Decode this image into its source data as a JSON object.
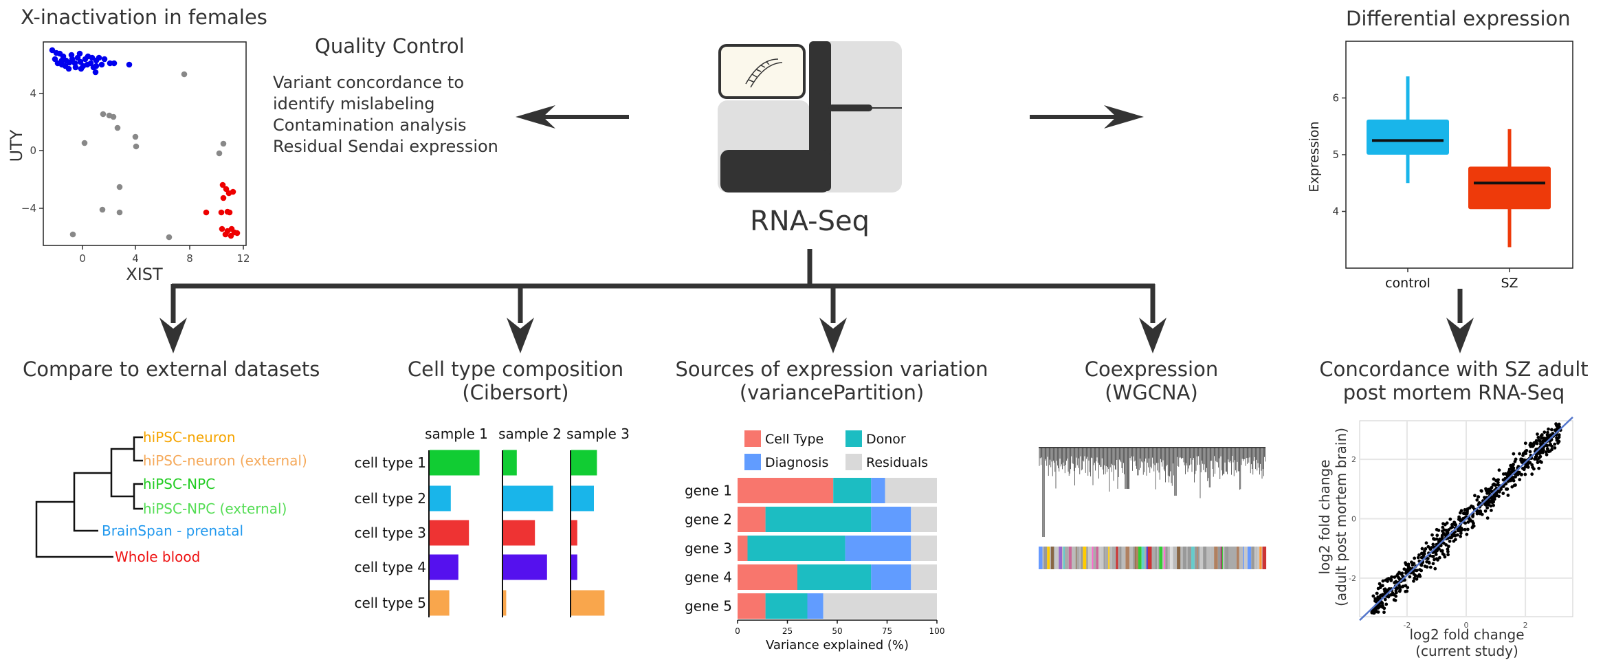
{
  "xinact": {
    "title": "X-inactivation in females",
    "xlabel": "XIST",
    "ylabel": "UTY",
    "xticks": [
      "0",
      "4",
      "8",
      "12"
    ],
    "yticks": [
      "4",
      "0",
      "−4"
    ],
    "colors": {
      "male": "#0000ee",
      "unknown": "#888888",
      "female": "#ee0000"
    }
  },
  "qc": {
    "title": "Quality Control",
    "lines": [
      "Variant concordance to",
      "identify mislabeling",
      "Contamination analysis",
      "Residual Sendai expression"
    ]
  },
  "rnaseq": {
    "label": "RNA-Seq"
  },
  "diffexp": {
    "title": "Differential expression",
    "ylabel": "Expression",
    "yticks": [
      "6",
      "5",
      "4"
    ],
    "groups": [
      {
        "name": "control",
        "color": "#19b5ea",
        "min": 4.5,
        "q1": 5.0,
        "median": 5.25,
        "q3": 5.62,
        "max": 6.38
      },
      {
        "name": "SZ",
        "color": "#ee3a0a",
        "min": 3.37,
        "q1": 4.04,
        "median": 4.5,
        "q3": 4.79,
        "max": 5.45
      }
    ]
  },
  "compare": {
    "title": "Compare to external datasets",
    "leaves": [
      {
        "label": "hiPSC-neuron",
        "color": "#f5a400"
      },
      {
        "label": "hiPSC-neuron (external)",
        "color": "#f5a95a"
      },
      {
        "label": "hiPSC-NPC",
        "color": "#22cc22"
      },
      {
        "label": "hiPSC-NPC (external)",
        "color": "#55dd55"
      },
      {
        "label": "BrainSpan - prenatal",
        "color": "#2299ee"
      },
      {
        "label": "Whole blood",
        "color": "#ee1111"
      }
    ]
  },
  "celltype": {
    "title_line1": "Cell type composition",
    "title_line2": "(Cibersort)",
    "samples": [
      "sample 1",
      "sample 2",
      "sample 3"
    ],
    "celltypes": [
      "cell type 1",
      "cell type 2",
      "cell type 3",
      "cell type 4",
      "cell type 5"
    ],
    "colors": [
      "#11cc33",
      "#19b5ea",
      "#ee3333",
      "#5511ee",
      "#f9a64c"
    ],
    "proportions": [
      [
        0.33,
        0.14,
        0.26,
        0.19,
        0.13
      ],
      [
        0.09,
        0.33,
        0.21,
        0.29,
        0.02
      ],
      [
        0.17,
        0.15,
        0.04,
        0.04,
        0.22
      ]
    ]
  },
  "variance": {
    "title_line1": "Sources of expression variation",
    "title_line2": "(variancePartition)",
    "xlabel": "Variance explained (%)",
    "xticks": [
      "0",
      "25",
      "50",
      "75",
      "100"
    ],
    "legend": [
      {
        "label": "Cell Type",
        "color": "#f8766d"
      },
      {
        "label": "Donor",
        "color": "#1cbdc2"
      },
      {
        "label": "Diagnosis",
        "color": "#619cff"
      },
      {
        "label": "Residuals",
        "color": "#d9d9d9"
      }
    ],
    "genes": [
      "gene 1",
      "gene 2",
      "gene 3",
      "gene 4",
      "gene 5"
    ],
    "values": [
      [
        48,
        19,
        7,
        26
      ],
      [
        14,
        53,
        20,
        13
      ],
      [
        5,
        49,
        33,
        13
      ],
      [
        30,
        37,
        20,
        13
      ],
      [
        14,
        21,
        8,
        57
      ]
    ]
  },
  "coexp": {
    "title_line1": "Coexpression",
    "title_line2": "(WGCNA)"
  },
  "concordance": {
    "title_line1": "Concordance with SZ adult",
    "title_line2": "post mortem RNA-Seq",
    "ylabel_line1": "log2 fold change",
    "ylabel_line2": "(adult post mortem brain)",
    "xlabel_line1": "log2 fold change",
    "xlabel_line2": "(current study)",
    "xticks": [
      "-2",
      "0",
      "2"
    ],
    "yticks": [
      "2",
      "0",
      "-2"
    ]
  }
}
